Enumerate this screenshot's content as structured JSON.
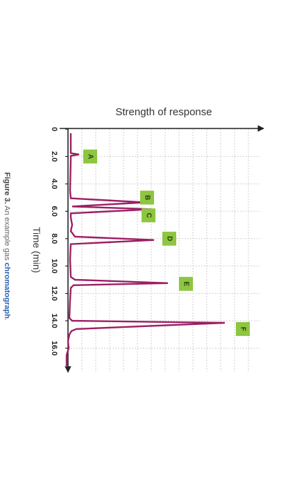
{
  "chart_data": {
    "type": "line",
    "title": "Strength of response",
    "xlabel": "Time (min)",
    "ylabel": "Strength of response",
    "x_ticks": [
      "0",
      "2.0",
      "4.0",
      "6.0",
      "8.0",
      "10.0",
      "12.0",
      "14.0",
      "16.0"
    ],
    "xlim": [
      0,
      17.7
    ],
    "ylim": [
      0,
      10
    ],
    "grid": true,
    "line_color": "#9c1f63",
    "label_color": "#8dc63f",
    "series": [
      {
        "x": [
          0.3,
          1.5,
          1.75,
          1.85,
          1.95,
          2.2,
          4.5,
          5.05,
          5.35,
          5.55,
          5.65,
          5.85,
          6.15,
          6.45,
          7.0,
          7.45,
          7.85,
          8.1,
          8.4,
          9.5,
          10.8,
          11.0,
          11.25,
          11.4,
          11.6,
          12.5,
          13.8,
          14.0,
          14.15,
          14.6,
          14.75,
          15.0,
          15.5,
          16.0,
          16.5,
          17.3
        ],
        "y": [
          0.2,
          0.2,
          0.2,
          0.8,
          0.2,
          0.2,
          0.15,
          0.2,
          5.5,
          2.0,
          0.3,
          6.0,
          0.2,
          0.2,
          0.3,
          0.2,
          0.5,
          6.2,
          0.2,
          0.15,
          0.2,
          0.5,
          7.2,
          0.4,
          0.2,
          0.15,
          0.1,
          0.3,
          11.3,
          0.6,
          0.25,
          0.1,
          0.0,
          0.05,
          -0.1,
          -0.1
        ]
      }
    ],
    "peak_labels": [
      {
        "text": "A",
        "x": 2.0,
        "y": 1.6
      },
      {
        "text": "B",
        "x": 5.0,
        "y": 5.7
      },
      {
        "text": "C",
        "x": 6.3,
        "y": 5.8
      },
      {
        "text": "D",
        "x": 8.0,
        "y": 7.3
      },
      {
        "text": "E",
        "x": 11.3,
        "y": 8.5
      },
      {
        "text": "F",
        "x": 14.6,
        "y": 12.6
      }
    ]
  },
  "caption": {
    "figure": "Figure 3.",
    "text": " An example gas ",
    "link": "chromatograph",
    "end": "."
  }
}
